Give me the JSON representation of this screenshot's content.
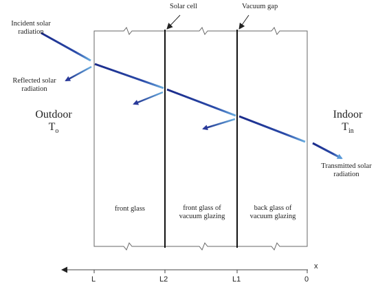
{
  "labels": {
    "incident": [
      "Incident solar",
      "radiation"
    ],
    "reflected": [
      "Reflected solar",
      "radiation"
    ],
    "solar_cell": "Solar cell",
    "vacuum_gap": "Vacuum gap",
    "outdoor": "Outdoor",
    "outdoor_temp": {
      "base": "T",
      "sub": "o"
    },
    "indoor": "Indoor",
    "indoor_temp": {
      "base": "T",
      "sub": "in"
    },
    "transmitted": [
      "Transmitted solar",
      "radiation"
    ],
    "front_glass": "front glass",
    "front_glass_vacuum": [
      "front glass of",
      "vacuum glazing"
    ],
    "back_glass_vacuum": [
      "back glass of",
      "vacuum glazing"
    ]
  },
  "axis": {
    "name": "x",
    "ticks": [
      "L",
      "L2",
      "L1",
      "0"
    ]
  },
  "colors": {
    "ray_dark": "#1a2a8a",
    "ray_light": "#5a9ad8",
    "outline": "#555555",
    "layer": "#111111"
  }
}
